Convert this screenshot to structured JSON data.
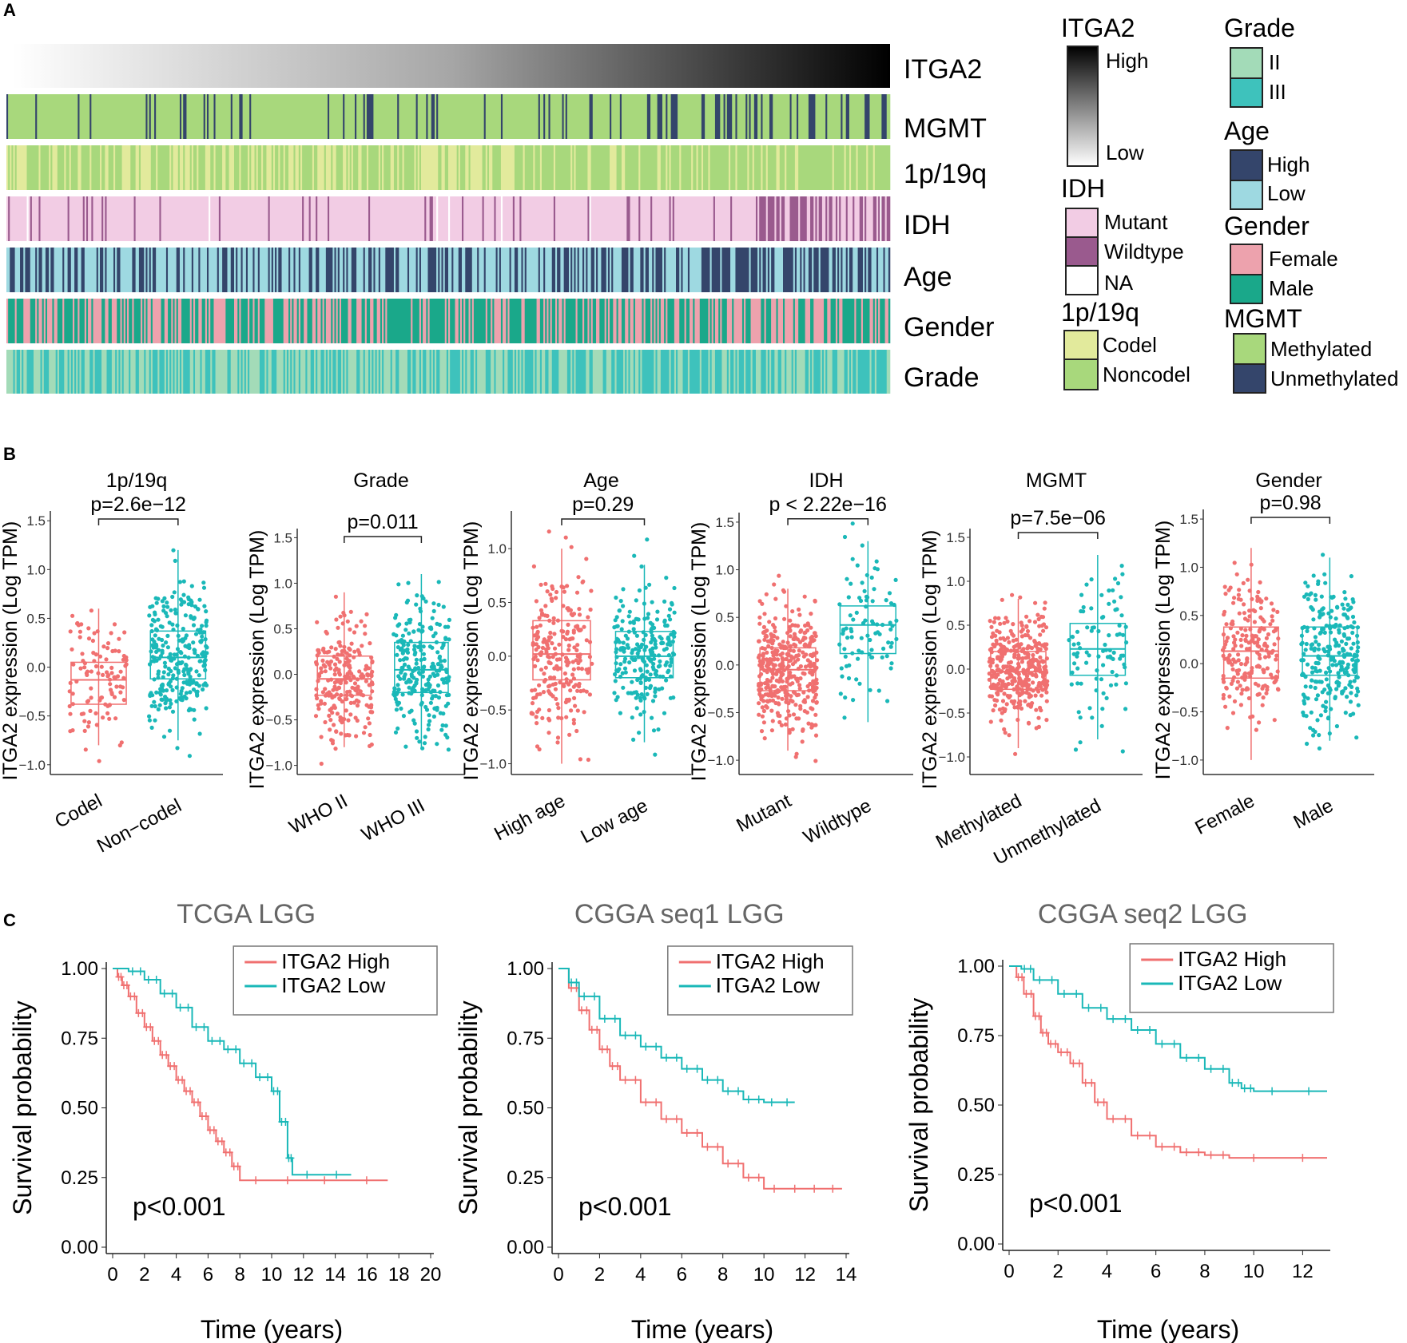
{
  "panels": {
    "a": "A",
    "b": "B",
    "c": "C"
  },
  "colors": {
    "red": "#f07070",
    "teal": "#1ab8b8",
    "mgmt_methylated": "#a8d87c",
    "mgmt_unmethylated": "#34456b",
    "codel": "#e2ea9c",
    "noncodel": "#a8d87c",
    "idh_mutant": "#f2cce4",
    "idh_wildtype": "#9a5a8e",
    "idh_na": "#ffffff",
    "age_high": "#34456b",
    "age_low": "#9ed9e1",
    "gender_female": "#eda2ad",
    "gender_male": "#1aa88a",
    "grade_ii": "#a3dbb8",
    "grade_iii": "#3ec2bc"
  },
  "heatmap": {
    "tracks": [
      "ITGA2",
      "MGMT",
      "1p/19q",
      "IDH",
      "Age",
      "Gender",
      "Grade"
    ],
    "legend": {
      "itga2": {
        "title": "ITGA2",
        "high": "High",
        "low": "Low"
      },
      "idh": {
        "title": "IDH",
        "items": [
          "Mutant",
          "Wildtype",
          "NA"
        ]
      },
      "codel": {
        "title": "1p/19q",
        "items": [
          "Codel",
          "Noncodel"
        ]
      },
      "grade": {
        "title": "Grade",
        "items": [
          "II",
          "III"
        ]
      },
      "age": {
        "title": "Age",
        "items": [
          "High",
          "Low"
        ]
      },
      "gender": {
        "title": "Gender",
        "items": [
          "Female",
          "Male"
        ]
      },
      "mgmt": {
        "title": "MGMT",
        "items": [
          "Methylated",
          "Unmethylated"
        ]
      }
    }
  },
  "chart_data": [
    {
      "type": "box",
      "title": "1p/19q",
      "ylabel": "ITGA2 expression (Log TPM)",
      "categories": [
        "Codel",
        "Non−codel"
      ],
      "pvalue": "p=2.6e−12",
      "ylim": [
        -1.1,
        1.6
      ],
      "yticks": [
        "−1.0",
        "−0.5",
        "0.0",
        "0.5",
        "1.0",
        "1.5"
      ],
      "ytick_values": [
        -1.0,
        -0.5,
        0.0,
        0.5,
        1.0,
        1.5
      ],
      "boxes": [
        {
          "min": -0.8,
          "q1": -0.38,
          "median": -0.13,
          "q3": 0.05,
          "max": 0.6
        },
        {
          "min": -0.75,
          "q1": -0.12,
          "median": 0.1,
          "q3": 0.37,
          "max": 1.2
        }
      ],
      "n": [
        110,
        280
      ]
    },
    {
      "type": "box",
      "title": "Grade",
      "ylabel": "ITGA2  expression (Log TPM)",
      "categories": [
        "WHO II",
        "WHO III"
      ],
      "pvalue": "p=0.011",
      "ylim": [
        -1.1,
        1.6
      ],
      "yticks": [
        "−1.0",
        "−0.5",
        "0.0",
        "0.5",
        "1.0",
        "1.5"
      ],
      "ytick_values": [
        -1.0,
        -0.5,
        0.0,
        0.5,
        1.0,
        1.5
      ],
      "boxes": [
        {
          "min": -0.8,
          "q1": -0.23,
          "median": -0.05,
          "q3": 0.2,
          "max": 0.9
        },
        {
          "min": -0.8,
          "q1": -0.2,
          "median": 0.05,
          "q3": 0.35,
          "max": 1.1
        }
      ],
      "n": [
        230,
        240
      ]
    },
    {
      "type": "box",
      "title": "Age",
      "ylabel": "ITGA2  expression (Log TPM)",
      "categories": [
        "High age",
        "Low age"
      ],
      "pvalue": "p=0.29",
      "ylim": [
        -1.1,
        1.35
      ],
      "yticks": [
        "−1.0",
        "−0.5",
        "0.0",
        "0.5",
        "1.0"
      ],
      "ytick_values": [
        -1.0,
        -0.5,
        0.0,
        0.5,
        1.0
      ],
      "boxes": [
        {
          "min": -1.0,
          "q1": -0.22,
          "median": 0.02,
          "q3": 0.33,
          "max": 1.0
        },
        {
          "min": -0.8,
          "q1": -0.2,
          "median": 0.0,
          "q3": 0.23,
          "max": 0.85
        }
      ],
      "n": [
        230,
        230
      ]
    },
    {
      "type": "box",
      "title": "IDH",
      "ylabel": "ITGA2  expression (Log TPM)",
      "categories": [
        "Mutant",
        "Wildtype"
      ],
      "pvalue": "p < 2.22e−16",
      "ylim": [
        -1.15,
        1.6
      ],
      "yticks": [
        "−1.0",
        "−0.5",
        "0.0",
        "0.5",
        "1.0",
        "1.5"
      ],
      "ytick_values": [
        -1.0,
        -0.5,
        0.0,
        0.5,
        1.0,
        1.5
      ],
      "boxes": [
        {
          "min": -0.9,
          "q1": -0.27,
          "median": -0.05,
          "q3": 0.18,
          "max": 0.8
        },
        {
          "min": -0.6,
          "q1": 0.12,
          "median": 0.42,
          "q3": 0.62,
          "max": 1.3
        }
      ],
      "n": [
        380,
        90
      ]
    },
    {
      "type": "box",
      "title": "MGMT",
      "ylabel": "ITGA2 expression (Log TPM)",
      "categories": [
        "Methylated",
        "Unmethylated"
      ],
      "pvalue": "p=7.5e−06",
      "ylim": [
        -1.2,
        1.6
      ],
      "yticks": [
        "−1.0",
        "−0.5",
        "0.0",
        "0.5",
        "1.0",
        "1.5"
      ],
      "ytick_values": [
        -1.0,
        -0.5,
        0.0,
        0.5,
        1.0,
        1.5
      ],
      "boxes": [
        {
          "min": -0.9,
          "q1": -0.23,
          "median": -0.03,
          "q3": 0.2,
          "max": 0.8
        },
        {
          "min": -0.8,
          "q1": -0.07,
          "median": 0.23,
          "q3": 0.52,
          "max": 1.3
        }
      ],
      "n": [
        380,
        90
      ]
    },
    {
      "type": "box",
      "title": "Gender",
      "ylabel": "ITGA2 expression (Log TPM)",
      "categories": [
        "Female",
        "Male"
      ],
      "pvalue": "p=0.98",
      "ylim": [
        -1.15,
        1.6
      ],
      "yticks": [
        "−1.0",
        "−0.5",
        "0.0",
        "0.5",
        "1.0",
        "1.5"
      ],
      "ytick_values": [
        -1.0,
        -0.5,
        0.0,
        0.5,
        1.0,
        1.5
      ],
      "boxes": [
        {
          "min": -1.0,
          "q1": -0.15,
          "median": 0.13,
          "q3": 0.38,
          "max": 1.2
        },
        {
          "min": -0.8,
          "q1": -0.12,
          "median": 0.08,
          "q3": 0.38,
          "max": 1.1
        }
      ],
      "n": [
        210,
        260
      ]
    },
    {
      "type": "line",
      "title": "TCGA  LGG",
      "xlabel": "Time (years)",
      "ylabel": "Survival probability",
      "xlim": [
        0,
        20
      ],
      "ylim": [
        0,
        1
      ],
      "xticks": [
        "0",
        "2",
        "4",
        "6",
        "8",
        "10",
        "12",
        "14",
        "16",
        "18",
        "20"
      ],
      "xtick_values": [
        0,
        2,
        4,
        6,
        8,
        10,
        12,
        14,
        16,
        18,
        20
      ],
      "yticks": [
        "0.00",
        "0.25",
        "0.50",
        "0.75",
        "1.00"
      ],
      "ytick_values": [
        0,
        0.25,
        0.5,
        0.75,
        1.0
      ],
      "pvalue": "p<0.001",
      "series": [
        {
          "name": "ITGA2 High",
          "color": "#f07070",
          "points": [
            [
              0,
              1
            ],
            [
              0.3,
              0.97
            ],
            [
              0.6,
              0.94
            ],
            [
              1,
              0.9
            ],
            [
              1.5,
              0.84
            ],
            [
              2,
              0.79
            ],
            [
              2.5,
              0.74
            ],
            [
              3,
              0.69
            ],
            [
              3.5,
              0.65
            ],
            [
              4,
              0.6
            ],
            [
              4.5,
              0.56
            ],
            [
              5,
              0.52
            ],
            [
              5.5,
              0.47
            ],
            [
              6,
              0.42
            ],
            [
              6.5,
              0.38
            ],
            [
              7,
              0.34
            ],
            [
              7.5,
              0.29
            ],
            [
              8,
              0.24
            ],
            [
              12,
              0.24
            ],
            [
              17.3,
              0.24
            ]
          ]
        },
        {
          "name": "ITGA2 Low",
          "color": "#1ab8b8",
          "points": [
            [
              0,
              1
            ],
            [
              1,
              0.99
            ],
            [
              2,
              0.96
            ],
            [
              3,
              0.91
            ],
            [
              4,
              0.86
            ],
            [
              5,
              0.79
            ],
            [
              6,
              0.74
            ],
            [
              7,
              0.71
            ],
            [
              8,
              0.66
            ],
            [
              9,
              0.61
            ],
            [
              10,
              0.56
            ],
            [
              10.5,
              0.45
            ],
            [
              11,
              0.32
            ],
            [
              11.3,
              0.26
            ],
            [
              15,
              0.26
            ]
          ]
        }
      ]
    },
    {
      "type": "line",
      "title": "CGGA  seq1 LGG",
      "xlabel": "Time (years)",
      "ylabel": "Survival probability",
      "xlim": [
        0,
        14
      ],
      "ylim": [
        0,
        1
      ],
      "xticks": [
        "0",
        "2",
        "4",
        "6",
        "8",
        "10",
        "12",
        "14"
      ],
      "xtick_values": [
        0,
        2,
        4,
        6,
        8,
        10,
        12,
        14
      ],
      "yticks": [
        "0.00",
        "0.25",
        "0.50",
        "0.75",
        "1.00"
      ],
      "ytick_values": [
        0,
        0.25,
        0.5,
        0.75,
        1.0
      ],
      "pvalue": "p<0.001",
      "series": [
        {
          "name": "ITGA2 High",
          "color": "#f07070",
          "points": [
            [
              0,
              1
            ],
            [
              0.5,
              0.93
            ],
            [
              1,
              0.85
            ],
            [
              1.5,
              0.78
            ],
            [
              2,
              0.71
            ],
            [
              2.5,
              0.65
            ],
            [
              3,
              0.6
            ],
            [
              4,
              0.52
            ],
            [
              5,
              0.46
            ],
            [
              6,
              0.41
            ],
            [
              7,
              0.36
            ],
            [
              8,
              0.3
            ],
            [
              9,
              0.25
            ],
            [
              10,
              0.21
            ],
            [
              12,
              0.21
            ],
            [
              13.8,
              0.21
            ]
          ]
        },
        {
          "name": "ITGA2 Low",
          "color": "#1ab8b8",
          "points": [
            [
              0,
              1
            ],
            [
              0.5,
              0.95
            ],
            [
              1,
              0.9
            ],
            [
              2,
              0.82
            ],
            [
              3,
              0.76
            ],
            [
              4,
              0.72
            ],
            [
              5,
              0.68
            ],
            [
              6,
              0.64
            ],
            [
              7,
              0.6
            ],
            [
              8,
              0.56
            ],
            [
              9,
              0.53
            ],
            [
              10,
              0.52
            ],
            [
              11.5,
              0.52
            ]
          ]
        }
      ]
    },
    {
      "type": "line",
      "title": "CGGA  seq2 LGG",
      "xlabel": "Time (years)",
      "ylabel": "Survival probability",
      "xlim": [
        0,
        13
      ],
      "ylim": [
        0,
        1
      ],
      "xticks": [
        "0",
        "2",
        "4",
        "6",
        "8",
        "10",
        "12"
      ],
      "xtick_values": [
        0,
        2,
        4,
        6,
        8,
        10,
        12
      ],
      "yticks": [
        "0.00",
        "0.25",
        "0.50",
        "0.75",
        "1.00"
      ],
      "ytick_values": [
        0,
        0.25,
        0.5,
        0.75,
        1.0
      ],
      "pvalue": "p<0.001",
      "series": [
        {
          "name": "ITGA2 High",
          "color": "#f07070",
          "points": [
            [
              0,
              1
            ],
            [
              0.3,
              0.96
            ],
            [
              0.6,
              0.9
            ],
            [
              1,
              0.82
            ],
            [
              1.3,
              0.76
            ],
            [
              1.6,
              0.72
            ],
            [
              2,
              0.69
            ],
            [
              2.5,
              0.65
            ],
            [
              3,
              0.58
            ],
            [
              3.5,
              0.51
            ],
            [
              4,
              0.45
            ],
            [
              5,
              0.39
            ],
            [
              6,
              0.35
            ],
            [
              7,
              0.33
            ],
            [
              8,
              0.32
            ],
            [
              9,
              0.31
            ],
            [
              13,
              0.31
            ]
          ]
        },
        {
          "name": "ITGA2 Low",
          "color": "#1ab8b8",
          "points": [
            [
              0,
              1
            ],
            [
              0.5,
              0.99
            ],
            [
              1,
              0.95
            ],
            [
              2,
              0.9
            ],
            [
              3,
              0.85
            ],
            [
              4,
              0.81
            ],
            [
              5,
              0.77
            ],
            [
              6,
              0.72
            ],
            [
              7,
              0.67
            ],
            [
              8,
              0.63
            ],
            [
              9,
              0.58
            ],
            [
              9.5,
              0.56
            ],
            [
              10,
              0.55
            ],
            [
              13,
              0.55
            ]
          ]
        }
      ]
    }
  ]
}
